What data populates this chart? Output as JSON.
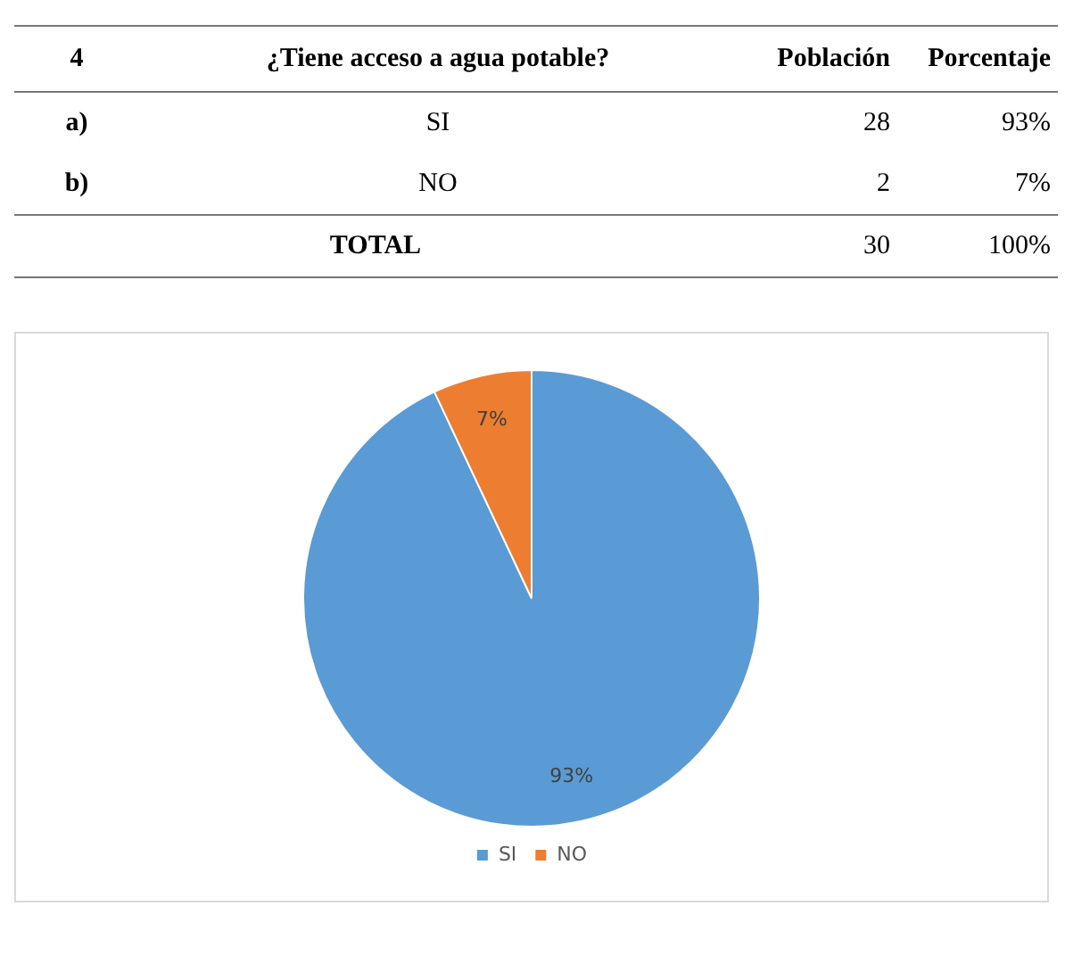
{
  "chart_data": {
    "type": "pie",
    "categories": [
      "SI",
      "NO"
    ],
    "values": [
      93,
      7
    ],
    "colors": [
      "#5b9bd5",
      "#ed7d31"
    ],
    "value_labels": [
      "93%",
      "7%"
    ],
    "legend": "bottom",
    "annotations": [
      "4",
      "¿Tiene acceso a agua potable?",
      "Población",
      "Porcentaje",
      "a)",
      "SI",
      "28",
      "93%",
      "b)",
      "NO",
      "2",
      "7%",
      "TOTAL",
      "30",
      "100%"
    ]
  }
}
